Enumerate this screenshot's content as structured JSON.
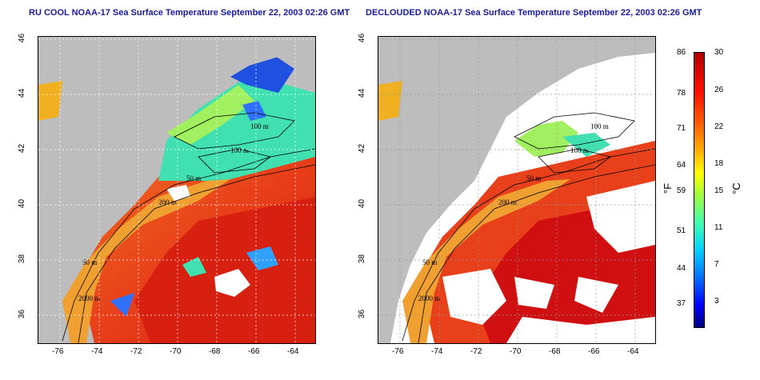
{
  "titles": {
    "left": "RU COOL NOAA-17 Sea Surface Temperature September 22, 2003 02:26 GMT",
    "right": "DECLOUDED NOAA-17 Sea Surface Temperature September 22, 2003 02:26 GMT"
  },
  "axes": {
    "x_ticks": [
      "-76",
      "-74",
      "-72",
      "-70",
      "-68",
      "-66",
      "-64"
    ],
    "y_ticks": [
      "46",
      "44",
      "42",
      "40",
      "38",
      "36"
    ]
  },
  "contours": [
    "100 m",
    "100 m",
    "50 m",
    "200 m",
    "50 m",
    "2000 m"
  ],
  "colorbar": {
    "left_unit": "°F",
    "right_unit": "°C",
    "fahrenheit_ticks": [
      "86",
      "78",
      "71",
      "64",
      "59",
      "51",
      "44",
      "37"
    ],
    "celsius_ticks": [
      "30",
      "26",
      "22",
      "18",
      "15",
      "11",
      "7",
      "3"
    ]
  },
  "colors": {
    "land": "#bdbdbd",
    "warm": "#e8401a",
    "hot": "#c81010",
    "cool": "#40e0b0",
    "cold": "#2050e0",
    "cloud": "#ffffff",
    "title": "#1a1aa0"
  }
}
